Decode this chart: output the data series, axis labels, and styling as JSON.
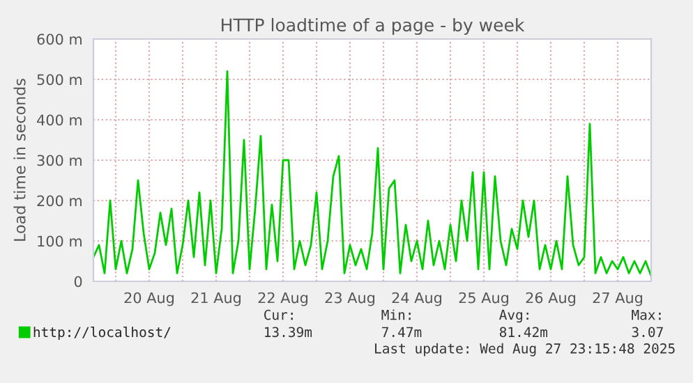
{
  "chart_data": {
    "type": "line",
    "title": "HTTP loadtime of a page - by week",
    "ylabel": "Load time in seconds",
    "x": [
      "2025-08-19T16:00",
      "2025-08-19T18:00",
      "2025-08-19T20:00",
      "2025-08-19T22:00",
      "2025-08-20T00:00",
      "2025-08-20T02:00",
      "2025-08-20T04:00",
      "2025-08-20T06:00",
      "2025-08-20T08:00",
      "2025-08-20T10:00",
      "2025-08-20T12:00",
      "2025-08-20T14:00",
      "2025-08-20T16:00",
      "2025-08-20T18:00",
      "2025-08-20T20:00",
      "2025-08-20T22:00",
      "2025-08-21T00:00",
      "2025-08-21T02:00",
      "2025-08-21T04:00",
      "2025-08-21T06:00",
      "2025-08-21T08:00",
      "2025-08-21T10:00",
      "2025-08-21T12:00",
      "2025-08-21T14:00",
      "2025-08-21T16:00",
      "2025-08-21T18:00",
      "2025-08-21T20:00",
      "2025-08-21T22:00",
      "2025-08-22T00:00",
      "2025-08-22T02:00",
      "2025-08-22T04:00",
      "2025-08-22T06:00",
      "2025-08-22T08:00",
      "2025-08-22T10:00",
      "2025-08-22T12:00",
      "2025-08-22T14:00",
      "2025-08-22T16:00",
      "2025-08-22T18:00",
      "2025-08-22T20:00",
      "2025-08-22T22:00",
      "2025-08-23T00:00",
      "2025-08-23T02:00",
      "2025-08-23T04:00",
      "2025-08-23T06:00",
      "2025-08-23T08:00",
      "2025-08-23T10:00",
      "2025-08-23T12:00",
      "2025-08-23T14:00",
      "2025-08-23T16:00",
      "2025-08-23T18:00",
      "2025-08-23T20:00",
      "2025-08-23T22:00",
      "2025-08-24T00:00",
      "2025-08-24T02:00",
      "2025-08-24T04:00",
      "2025-08-24T06:00",
      "2025-08-24T08:00",
      "2025-08-24T10:00",
      "2025-08-24T12:00",
      "2025-08-24T14:00",
      "2025-08-24T16:00",
      "2025-08-24T18:00",
      "2025-08-24T20:00",
      "2025-08-24T22:00",
      "2025-08-25T00:00",
      "2025-08-25T02:00",
      "2025-08-25T04:00",
      "2025-08-25T06:00",
      "2025-08-25T08:00",
      "2025-08-25T10:00",
      "2025-08-25T12:00",
      "2025-08-25T14:00",
      "2025-08-25T16:00",
      "2025-08-25T18:00",
      "2025-08-25T20:00",
      "2025-08-25T22:00",
      "2025-08-26T00:00",
      "2025-08-26T02:00",
      "2025-08-26T04:00",
      "2025-08-26T06:00",
      "2025-08-26T08:00",
      "2025-08-26T10:00",
      "2025-08-26T12:00",
      "2025-08-26T14:00",
      "2025-08-26T16:00",
      "2025-08-26T18:00",
      "2025-08-26T20:00",
      "2025-08-26T22:00",
      "2025-08-27T00:00",
      "2025-08-27T02:00",
      "2025-08-27T04:00",
      "2025-08-27T06:00",
      "2025-08-27T08:00",
      "2025-08-27T10:00",
      "2025-08-27T12:00",
      "2025-08-27T14:00",
      "2025-08-27T16:00",
      "2025-08-27T18:00",
      "2025-08-27T20:00",
      "2025-08-27T22:00",
      "2025-08-28T00:00"
    ],
    "series": [
      {
        "name": "http://localhost/",
        "color": "#00cc00",
        "values": [
          60,
          90,
          20,
          200,
          30,
          100,
          20,
          80,
          250,
          120,
          30,
          70,
          170,
          90,
          180,
          20,
          90,
          200,
          60,
          220,
          40,
          200,
          20,
          130,
          520,
          20,
          100,
          350,
          30,
          180,
          360,
          30,
          190,
          50,
          300,
          300,
          30,
          100,
          40,
          90,
          220,
          30,
          100,
          260,
          310,
          20,
          90,
          40,
          80,
          30,
          120,
          330,
          30,
          230,
          250,
          20,
          140,
          50,
          100,
          30,
          150,
          40,
          100,
          30,
          140,
          50,
          200,
          100,
          270,
          30,
          270,
          30,
          260,
          100,
          40,
          130,
          80,
          200,
          110,
          200,
          30,
          90,
          30,
          100,
          30,
          260,
          90,
          40,
          60,
          390,
          20,
          60,
          20,
          50,
          30,
          60,
          20,
          50,
          20,
          50,
          13
        ]
      }
    ],
    "xlim": [
      "2025-08-19T16:00",
      "2025-08-28T00:00"
    ],
    "xticks": [
      {
        "value": "2025-08-20T00:00",
        "label": null
      },
      {
        "value": "2025-08-20T12:00",
        "label": "20 Aug"
      },
      {
        "value": "2025-08-21T00:00",
        "label": null
      },
      {
        "value": "2025-08-21T12:00",
        "label": "21 Aug"
      },
      {
        "value": "2025-08-22T00:00",
        "label": null
      },
      {
        "value": "2025-08-22T12:00",
        "label": "22 Aug"
      },
      {
        "value": "2025-08-23T00:00",
        "label": null
      },
      {
        "value": "2025-08-23T12:00",
        "label": "23 Aug"
      },
      {
        "value": "2025-08-24T00:00",
        "label": null
      },
      {
        "value": "2025-08-24T12:00",
        "label": "24 Aug"
      },
      {
        "value": "2025-08-25T00:00",
        "label": null
      },
      {
        "value": "2025-08-25T12:00",
        "label": "25 Aug"
      },
      {
        "value": "2025-08-26T00:00",
        "label": null
      },
      {
        "value": "2025-08-26T12:00",
        "label": "26 Aug"
      },
      {
        "value": "2025-08-27T00:00",
        "label": null
      },
      {
        "value": "2025-08-27T12:00",
        "label": "27 Aug"
      }
    ],
    "ylim": [
      0,
      600
    ],
    "yticks": [
      {
        "value": 0,
        "label": "0"
      },
      {
        "value": 100,
        "label": "100 m"
      },
      {
        "value": 200,
        "label": "200 m"
      },
      {
        "value": 300,
        "label": "300 m"
      },
      {
        "value": 400,
        "label": "400 m"
      },
      {
        "value": 500,
        "label": "500 m"
      },
      {
        "value": 600,
        "label": "600 m"
      }
    ],
    "grid": true,
    "legend": "bottom left",
    "line_style": "solid",
    "marker": "none",
    "annotations": [
      "Cur:",
      "13.39m",
      "Min:",
      "7.47m",
      "Avg:",
      "81.42m",
      "Max:",
      "3.07",
      "Last update: Wed Aug 27 23:15:48 2025"
    ]
  }
}
